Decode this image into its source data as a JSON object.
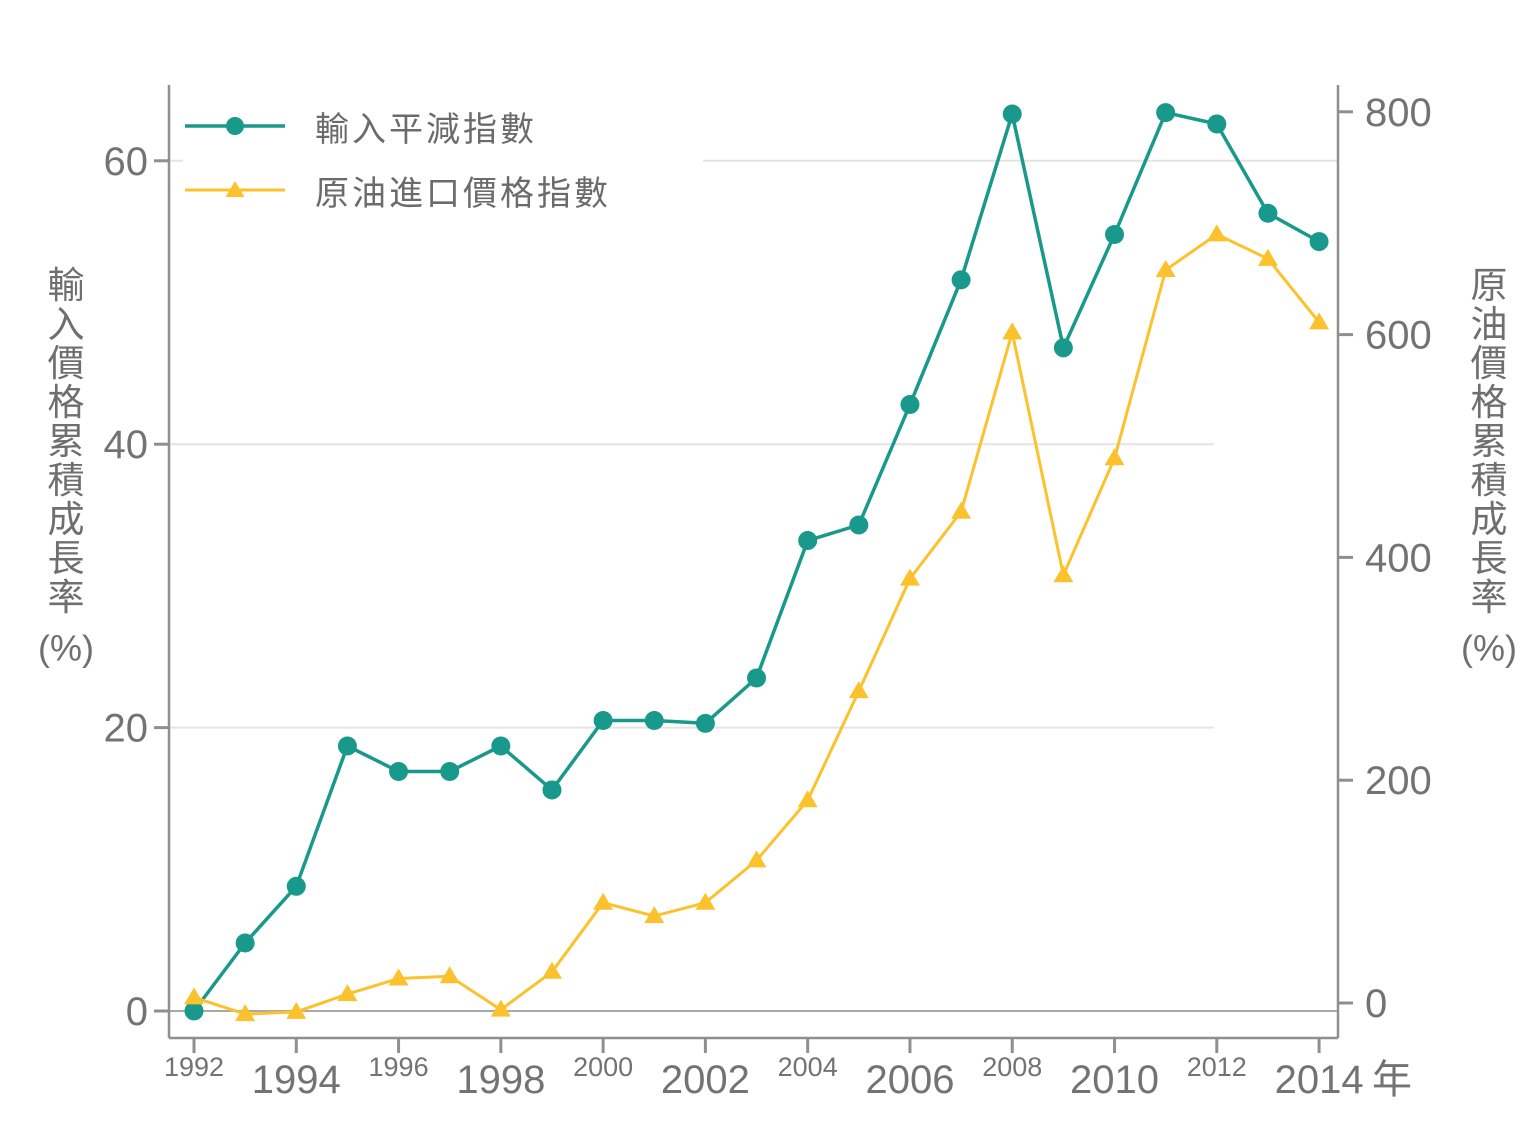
{
  "chart_data": {
    "type": "line",
    "title": "",
    "x": [
      1992,
      1993,
      1994,
      1995,
      1996,
      1997,
      1998,
      1999,
      2000,
      2001,
      2002,
      2003,
      2004,
      2005,
      2006,
      2007,
      2008,
      2009,
      2010,
      2011,
      2012,
      2013,
      2014
    ],
    "series": [
      {
        "name": "輸入平減指數",
        "axis": "left",
        "marker": "circle",
        "color": "#18998B",
        "values": [
          0,
          4.8,
          8.8,
          18.7,
          16.9,
          16.9,
          18.7,
          15.6,
          20.5,
          20.5,
          20.3,
          23.5,
          33.2,
          34.3,
          42.8,
          51.6,
          63.3,
          46.8,
          54.8,
          63.4,
          62.6,
          56.3,
          54.3
        ]
      },
      {
        "name": "原油進口價格指數",
        "axis": "right",
        "marker": "triangle",
        "color": "#FBC22D",
        "values": [
          5,
          -10,
          -8,
          8,
          22,
          24,
          -6,
          28,
          90,
          78,
          90,
          128,
          182,
          280,
          381,
          441,
          602,
          384,
          489,
          658,
          690,
          668,
          611
        ]
      }
    ],
    "left_axis": {
      "title_vertical": "輸入價格累積成長率",
      "unit": "(%)",
      "ticks": [
        0,
        20,
        40,
        60
      ],
      "range": [
        0,
        66
      ]
    },
    "right_axis": {
      "title_vertical": "原油價格累積成長率",
      "unit": "(%)",
      "ticks": [
        0,
        200,
        400,
        600,
        800
      ],
      "range": [
        0,
        830
      ]
    },
    "x_axis": {
      "suffix": "年",
      "ticks": [
        {
          "year": 1992,
          "label": "1992",
          "emphasis": "small"
        },
        {
          "year": 1994,
          "label": "1994",
          "emphasis": "large"
        },
        {
          "year": 1996,
          "label": "1996",
          "emphasis": "small"
        },
        {
          "year": 1998,
          "label": "1998",
          "emphasis": "large"
        },
        {
          "year": 2000,
          "label": "2000",
          "emphasis": "small"
        },
        {
          "year": 2002,
          "label": "2002",
          "emphasis": "large"
        },
        {
          "year": 2004,
          "label": "2004",
          "emphasis": "small"
        },
        {
          "year": 2006,
          "label": "2006",
          "emphasis": "large"
        },
        {
          "year": 2008,
          "label": "2008",
          "emphasis": "small"
        },
        {
          "year": 2010,
          "label": "2010",
          "emphasis": "large"
        },
        {
          "year": 2012,
          "label": "2012",
          "emphasis": "small"
        },
        {
          "year": 2014,
          "label": "2014",
          "emphasis": "large"
        }
      ]
    },
    "grid": {
      "horizontal_ticks": [
        20,
        40,
        60
      ],
      "zero_line": true
    },
    "legend_position": "top-left",
    "colors": {
      "tick_text": "#737373",
      "title_text": "#6F6F6F",
      "axis_line": "#8F8F8F",
      "grid_line": "#E4E4E4",
      "zero_line": "#A9A9A9"
    }
  }
}
